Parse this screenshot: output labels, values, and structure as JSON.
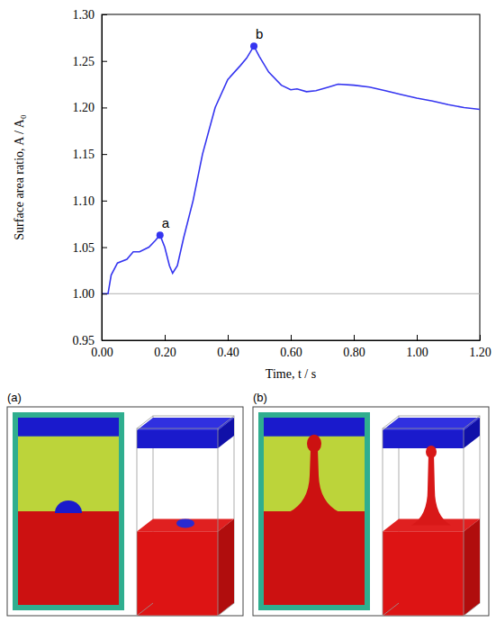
{
  "chart_data": {
    "type": "line",
    "x_label": "Time, t / s",
    "y_label": "Surface area ratio, A / A₀",
    "x": [
      0.0,
      0.02,
      0.03,
      0.05,
      0.08,
      0.1,
      0.12,
      0.15,
      0.17,
      0.185,
      0.2,
      0.215,
      0.225,
      0.24,
      0.26,
      0.29,
      0.32,
      0.36,
      0.4,
      0.44,
      0.46,
      0.483,
      0.5,
      0.53,
      0.57,
      0.6,
      0.62,
      0.65,
      0.68,
      0.72,
      0.75,
      0.8,
      0.85,
      0.9,
      0.95,
      1.0,
      1.05,
      1.1,
      1.15,
      1.2
    ],
    "series": [
      {
        "color": "#3535f0",
        "values": [
          1.0,
          1.0,
          1.02,
          1.033,
          1.037,
          1.045,
          1.045,
          1.05,
          1.057,
          1.063,
          1.05,
          1.03,
          1.022,
          1.03,
          1.06,
          1.1,
          1.15,
          1.2,
          1.23,
          1.245,
          1.253,
          1.266,
          1.255,
          1.238,
          1.224,
          1.219,
          1.22,
          1.217,
          1.218,
          1.222,
          1.225,
          1.224,
          1.222,
          1.218,
          1.214,
          1.21,
          1.207,
          1.203,
          1.2,
          1.198
        ]
      }
    ],
    "xlim": [
      0.0,
      1.2
    ],
    "xticks": [
      {
        "value": 0.0,
        "label": "0.00"
      },
      {
        "value": 0.2,
        "label": "0.20"
      },
      {
        "value": 0.4,
        "label": "0.40"
      },
      {
        "value": 0.6,
        "label": "0.60"
      },
      {
        "value": 0.8,
        "label": "0.80"
      },
      {
        "value": 1.0,
        "label": "1.00"
      },
      {
        "value": 1.2,
        "label": "1.20"
      }
    ],
    "ylim": [
      0.95,
      1.3
    ],
    "yticks": [
      0.95,
      {
        "value": 1.0,
        "label": "1.00"
      },
      1.05,
      {
        "value": 1.1,
        "label": "1.10"
      },
      1.15,
      {
        "value": 1.2,
        "label": "1.20"
      },
      1.25,
      {
        "value": 1.3,
        "label": "1.30"
      }
    ],
    "reference_line": {
      "y": 1.0,
      "color": "#b0b0b0"
    },
    "annotations": [
      {
        "label": "a",
        "x": 0.185,
        "y": 1.063
      },
      {
        "label": "b",
        "x": 0.483,
        "y": 1.266
      }
    ],
    "grid": false
  },
  "panels": {
    "labels": [
      "(a)",
      "(b)"
    ]
  }
}
